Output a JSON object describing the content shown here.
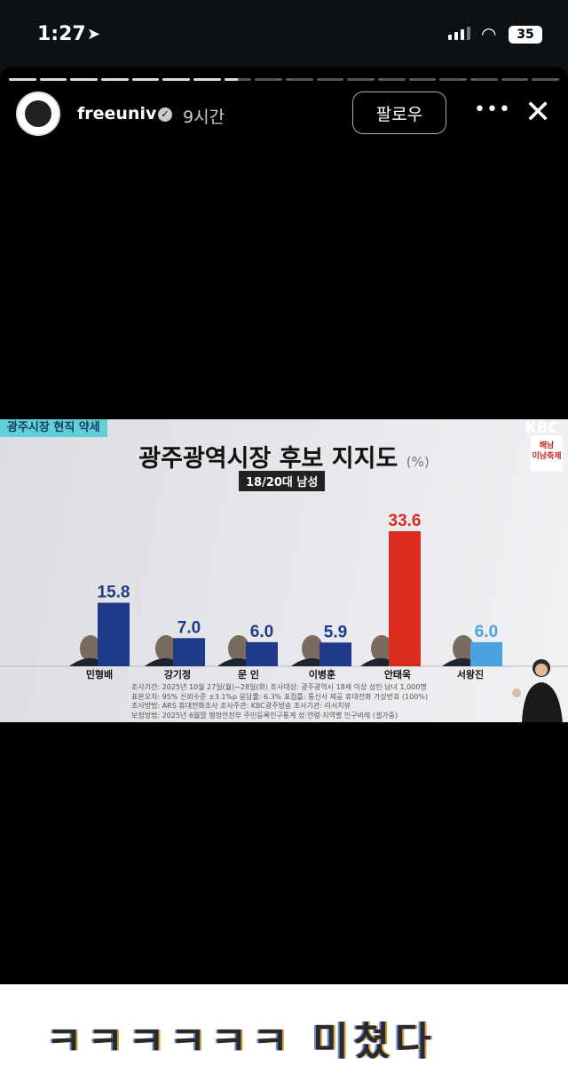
{
  "status_bar": {
    "time": "1:27",
    "battery": "35"
  },
  "story": {
    "username": "freeuniv",
    "time_ago": "9시간",
    "follow_label": "팔로우",
    "segments_total": 18,
    "segments_done": 7,
    "current_segment_progress": 0.5
  },
  "media": {
    "tagline": "광주시장 현직 약세",
    "broadcaster": "KBC",
    "logo_text": "해남 미남축제",
    "signer": "sign language interpreter"
  },
  "chart_data": {
    "type": "bar",
    "title": "광주광역시장 후보 지지도",
    "unit": "(%)",
    "subtitle": "18/20대 남성",
    "categories": [
      "민형배",
      "강기정",
      "문 인",
      "이병훈",
      "안태욱",
      "서왕진"
    ],
    "values": [
      15.8,
      7.0,
      6.0,
      5.9,
      33.6,
      6.0
    ],
    "labels": [
      "15.8",
      "7.0",
      "6.0",
      "5.9",
      "33.6",
      "6.0"
    ],
    "colors": [
      "#1f3a8a",
      "#1f3a8a",
      "#1f3a8a",
      "#1f3a8a",
      "#d92b1e",
      "#4aa3e0"
    ],
    "ylim": [
      0,
      36
    ],
    "notes": [
      "조사기간: 2025년 10월 27일(월)~28일(화)   조사대상: 광주광역시 18세 이상 성인 남녀 1,000명",
      "표본오차: 95% 신뢰수준 ±3.1%p   응답률: 6.3%   표집틀: 통신사 제공 휴대전화 가상번호 (100%)",
      "조사방법: ARS 휴대전화조사   조사주관: KBC광주방송   조사기관: 리서치뷰",
      "보정방법: 2025년 6월말 행정안전부 주민등록인구통계 성·연령·지역별 인구비례 (셀가중)"
    ]
  },
  "caption": "ㅋㅋㅋㅋㅋㅋ 미쳤다"
}
